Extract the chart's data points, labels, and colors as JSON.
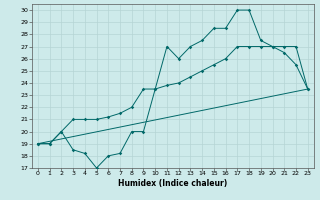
{
  "xlabel": "Humidex (Indice chaleur)",
  "xlim": [
    -0.5,
    23.5
  ],
  "ylim": [
    17,
    30.5
  ],
  "xticks": [
    0,
    1,
    2,
    3,
    4,
    5,
    6,
    7,
    8,
    9,
    10,
    11,
    12,
    13,
    14,
    15,
    16,
    17,
    18,
    19,
    20,
    21,
    22,
    23
  ],
  "yticks": [
    17,
    18,
    19,
    20,
    21,
    22,
    23,
    24,
    25,
    26,
    27,
    28,
    29,
    30
  ],
  "bg_color": "#cdeaea",
  "grid_color": "#b8d8d8",
  "line_color": "#006868",
  "line1_x": [
    0,
    1,
    2,
    3,
    4,
    5,
    6,
    7,
    8,
    9,
    10,
    11,
    12,
    13,
    14,
    15,
    16,
    17,
    18,
    19,
    20,
    21,
    22,
    23
  ],
  "line1_y": [
    19,
    19,
    20,
    18.5,
    18.2,
    17,
    18,
    18.2,
    20,
    20,
    23.5,
    27,
    26,
    27,
    27.5,
    28.5,
    28.5,
    30,
    30,
    27.5,
    27,
    26.5,
    25.5,
    23.5
  ],
  "line2_x": [
    0,
    1,
    2,
    3,
    4,
    5,
    6,
    7,
    8,
    9,
    10,
    11,
    12,
    13,
    14,
    15,
    16,
    17,
    18,
    19,
    20,
    21,
    22,
    23
  ],
  "line2_y": [
    19,
    19,
    20,
    21,
    21,
    21,
    21.2,
    21.5,
    22,
    23.5,
    23.5,
    23.8,
    24,
    24.5,
    25,
    25.5,
    26,
    27,
    27,
    27,
    27,
    27,
    27,
    23.5
  ],
  "line3_x": [
    0,
    23
  ],
  "line3_y": [
    19,
    23.5
  ]
}
